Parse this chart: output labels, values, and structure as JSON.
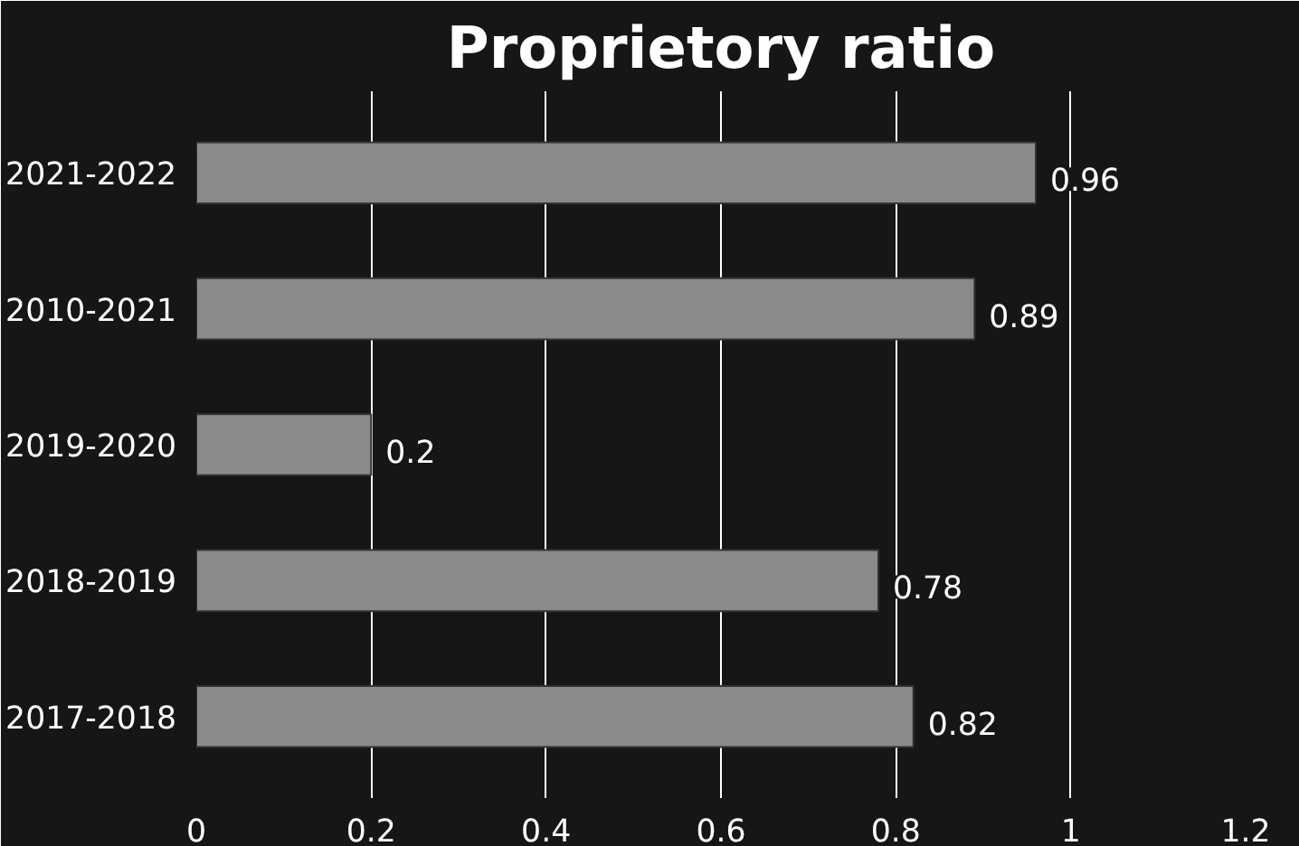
{
  "chart_data": {
    "type": "bar",
    "orientation": "horizontal",
    "title": "Proprietory ratio",
    "categories": [
      "2021-2022",
      "2010-2021",
      "2019-2020",
      "2018-2019",
      "2017-2018"
    ],
    "values": [
      0.96,
      0.89,
      0.2,
      0.78,
      0.82
    ],
    "color": "#8a8a8a",
    "xlim": [
      0,
      1.2
    ],
    "xticks": [
      0,
      0.2,
      0.4,
      0.6,
      0.8,
      1,
      1.2
    ],
    "grid": "x",
    "data_labels": true
  }
}
